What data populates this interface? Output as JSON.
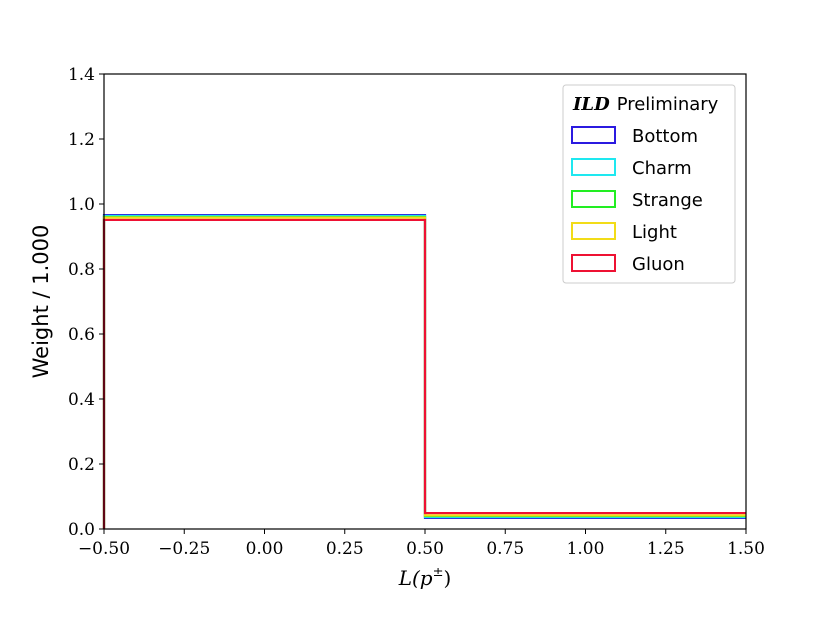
{
  "chart_data": {
    "type": "step",
    "title": "",
    "xlabel_base": "L(p",
    "xlabel_sup": "±",
    "xlabel_close": ")",
    "ylabel": "Weight / 1.000",
    "xlim": [
      -0.5,
      1.5
    ],
    "ylim": [
      0.0,
      1.4
    ],
    "xticks": [
      "−0.50",
      "−0.25",
      "0.00",
      "0.25",
      "0.50",
      "0.75",
      "1.00",
      "1.25",
      "1.50"
    ],
    "xtick_values": [
      -0.5,
      -0.25,
      0.0,
      0.25,
      0.5,
      0.75,
      1.0,
      1.25,
      1.5
    ],
    "yticks": [
      "0.0",
      "0.2",
      "0.4",
      "0.6",
      "0.8",
      "1.0",
      "1.2",
      "1.4"
    ],
    "ytick_values": [
      0.0,
      0.2,
      0.4,
      0.6,
      0.8,
      1.0,
      1.2,
      1.4
    ],
    "bin_edges": [
      -0.5,
      0.5,
      1.5
    ],
    "legend": {
      "placement": "top-right",
      "title_bold": "ILD",
      "title_rest": "Preliminary"
    },
    "series": [
      {
        "name": "Bottom",
        "color": "#2b1ae0",
        "values": [
          0.966,
          0.034
        ]
      },
      {
        "name": "Charm",
        "color": "#1ee8f0",
        "values": [
          0.963,
          0.037
        ]
      },
      {
        "name": "Strange",
        "color": "#22ee22",
        "values": [
          0.96,
          0.04
        ]
      },
      {
        "name": "Light",
        "color": "#f2dc18",
        "values": [
          0.958,
          0.042
        ]
      },
      {
        "name": "Gluon",
        "color": "#ee1133",
        "values": [
          0.951,
          0.049
        ]
      }
    ]
  }
}
